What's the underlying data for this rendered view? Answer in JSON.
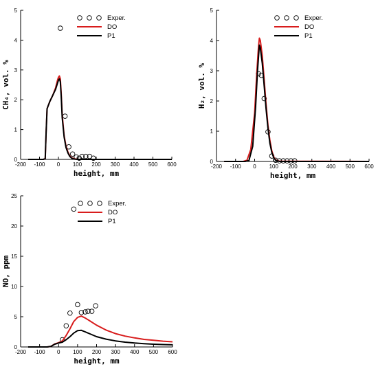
{
  "chart_data": [
    {
      "type": "line",
      "xlabel": "height, mm",
      "ylabel": "CH₄, vol. %",
      "xlim": [
        -200,
        600
      ],
      "ylim": [
        0,
        5
      ],
      "xticks": [
        -200,
        -100,
        0,
        100,
        200,
        300,
        400,
        500,
        600
      ],
      "yticks": [
        0,
        1,
        2,
        3,
        4,
        5
      ],
      "legend_position": "top-right",
      "legend": [
        "Exper.",
        "DO",
        "P1"
      ],
      "series": [
        {
          "name": "Exper.",
          "kind": "markers",
          "color": "#000000",
          "points": [
            [
              10,
              4.4
            ],
            [
              35,
              1.45
            ],
            [
              55,
              0.42
            ],
            [
              75,
              0.18
            ],
            [
              95,
              0.08
            ],
            [
              110,
              0.04
            ],
            [
              125,
              0.1
            ],
            [
              145,
              0.1
            ],
            [
              165,
              0.1
            ],
            [
              185,
              0.04
            ]
          ]
        },
        {
          "name": "DO",
          "kind": "line",
          "color": "#d81c1c",
          "points": [
            [
              -160,
              0.0
            ],
            [
              -80,
              0.0
            ],
            [
              -70,
              0.02
            ],
            [
              -65,
              0.9
            ],
            [
              -60,
              1.7
            ],
            [
              -45,
              1.95
            ],
            [
              -30,
              2.15
            ],
            [
              -15,
              2.4
            ],
            [
              -5,
              2.65
            ],
            [
              0,
              2.75
            ],
            [
              5,
              2.8
            ],
            [
              10,
              2.7
            ],
            [
              15,
              2.2
            ],
            [
              20,
              1.5
            ],
            [
              30,
              0.8
            ],
            [
              40,
              0.45
            ],
            [
              50,
              0.25
            ],
            [
              60,
              0.12
            ],
            [
              70,
              0.05
            ],
            [
              85,
              0.02
            ],
            [
              100,
              0.0
            ],
            [
              600,
              0.0
            ]
          ]
        },
        {
          "name": "P1",
          "kind": "line",
          "color": "#000000",
          "points": [
            [
              -160,
              0.0
            ],
            [
              -80,
              0.0
            ],
            [
              -70,
              0.02
            ],
            [
              -65,
              0.9
            ],
            [
              -60,
              1.7
            ],
            [
              -45,
              1.95
            ],
            [
              -30,
              2.15
            ],
            [
              -15,
              2.35
            ],
            [
              -5,
              2.55
            ],
            [
              0,
              2.65
            ],
            [
              5,
              2.7
            ],
            [
              10,
              2.6
            ],
            [
              15,
              2.1
            ],
            [
              20,
              1.4
            ],
            [
              30,
              0.75
            ],
            [
              40,
              0.4
            ],
            [
              50,
              0.22
            ],
            [
              60,
              0.1
            ],
            [
              70,
              0.04
            ],
            [
              85,
              0.01
            ],
            [
              100,
              0.0
            ],
            [
              600,
              0.0
            ]
          ]
        }
      ]
    },
    {
      "type": "line",
      "xlabel": "height, mm",
      "ylabel": "H₂, vol. %",
      "xlim": [
        -200,
        600
      ],
      "ylim": [
        0,
        5
      ],
      "xticks": [
        -200,
        -100,
        0,
        100,
        200,
        300,
        400,
        500,
        600
      ],
      "yticks": [
        0,
        1,
        2,
        3,
        4,
        5
      ],
      "legend_position": "top-right",
      "legend": [
        "Exper.",
        "DO",
        "P1"
      ],
      "series": [
        {
          "name": "Exper.",
          "kind": "markers",
          "color": "#000000",
          "points": [
            [
              20,
              2.9
            ],
            [
              35,
              2.85
            ],
            [
              50,
              2.08
            ],
            [
              70,
              0.98
            ],
            [
              90,
              0.18
            ],
            [
              110,
              0.04
            ],
            [
              130,
              0.02
            ],
            [
              150,
              0.02
            ],
            [
              170,
              0.02
            ],
            [
              190,
              0.02
            ],
            [
              210,
              0.02
            ]
          ]
        },
        {
          "name": "DO",
          "kind": "line",
          "color": "#d81c1c",
          "points": [
            [
              -160,
              0.0
            ],
            [
              -60,
              0.0
            ],
            [
              -40,
              0.04
            ],
            [
              -20,
              0.4
            ],
            [
              0,
              1.6
            ],
            [
              10,
              2.8
            ],
            [
              20,
              3.8
            ],
            [
              25,
              4.08
            ],
            [
              30,
              4.0
            ],
            [
              40,
              3.5
            ],
            [
              50,
              2.7
            ],
            [
              60,
              1.9
            ],
            [
              70,
              1.2
            ],
            [
              80,
              0.7
            ],
            [
              90,
              0.35
            ],
            [
              100,
              0.15
            ],
            [
              110,
              0.05
            ],
            [
              130,
              0.01
            ],
            [
              600,
              0.0
            ]
          ]
        },
        {
          "name": "P1",
          "kind": "line",
          "color": "#000000",
          "points": [
            [
              -160,
              0.0
            ],
            [
              -50,
              0.0
            ],
            [
              -30,
              0.03
            ],
            [
              -10,
              0.5
            ],
            [
              5,
              1.8
            ],
            [
              15,
              3.0
            ],
            [
              25,
              3.85
            ],
            [
              30,
              3.75
            ],
            [
              40,
              3.25
            ],
            [
              50,
              2.5
            ],
            [
              60,
              1.75
            ],
            [
              70,
              1.1
            ],
            [
              80,
              0.6
            ],
            [
              90,
              0.3
            ],
            [
              100,
              0.12
            ],
            [
              110,
              0.04
            ],
            [
              130,
              0.0
            ],
            [
              600,
              0.0
            ]
          ]
        }
      ]
    },
    {
      "type": "line",
      "xlabel": "height, mm",
      "ylabel": "NO, ppm",
      "xlim": [
        -200,
        600
      ],
      "ylim": [
        0,
        25
      ],
      "xticks": [
        -200,
        -100,
        0,
        100,
        200,
        300,
        400,
        500,
        600
      ],
      "yticks": [
        0,
        5,
        10,
        15,
        20,
        25
      ],
      "legend_position": "top-right",
      "legend": [
        "Exper.",
        "DO",
        "P1"
      ],
      "series": [
        {
          "name": "Exper.",
          "kind": "markers",
          "color": "#000000",
          "points": [
            [
              20,
              1.2
            ],
            [
              40,
              3.5
            ],
            [
              60,
              5.6
            ],
            [
              80,
              22.8
            ],
            [
              100,
              7.0
            ],
            [
              120,
              5.7
            ],
            [
              140,
              5.8
            ],
            [
              155,
              5.9
            ],
            [
              175,
              5.9
            ],
            [
              195,
              6.8
            ]
          ]
        },
        {
          "name": "DO",
          "kind": "line",
          "color": "#d81c1c",
          "points": [
            [
              -160,
              0.0
            ],
            [
              -60,
              0.0
            ],
            [
              -40,
              0.1
            ],
            [
              -20,
              0.5
            ],
            [
              0,
              0.7
            ],
            [
              20,
              1.0
            ],
            [
              40,
              1.9
            ],
            [
              60,
              3.0
            ],
            [
              80,
              4.2
            ],
            [
              100,
              4.9
            ],
            [
              120,
              5.1
            ],
            [
              140,
              4.8
            ],
            [
              170,
              4.2
            ],
            [
              200,
              3.6
            ],
            [
              250,
              2.8
            ],
            [
              300,
              2.2
            ],
            [
              350,
              1.8
            ],
            [
              400,
              1.5
            ],
            [
              450,
              1.25
            ],
            [
              500,
              1.1
            ],
            [
              550,
              0.95
            ],
            [
              600,
              0.85
            ]
          ]
        },
        {
          "name": "P1",
          "kind": "line",
          "color": "#000000",
          "points": [
            [
              -160,
              0.0
            ],
            [
              -60,
              0.0
            ],
            [
              -40,
              0.1
            ],
            [
              -20,
              0.45
            ],
            [
              0,
              0.65
            ],
            [
              20,
              0.8
            ],
            [
              40,
              1.2
            ],
            [
              60,
              1.7
            ],
            [
              80,
              2.3
            ],
            [
              100,
              2.7
            ],
            [
              120,
              2.75
            ],
            [
              140,
              2.5
            ],
            [
              170,
              2.1
            ],
            [
              200,
              1.7
            ],
            [
              250,
              1.3
            ],
            [
              300,
              1.0
            ],
            [
              350,
              0.8
            ],
            [
              400,
              0.65
            ],
            [
              450,
              0.55
            ],
            [
              500,
              0.45
            ],
            [
              550,
              0.4
            ],
            [
              600,
              0.35
            ]
          ]
        }
      ]
    }
  ]
}
